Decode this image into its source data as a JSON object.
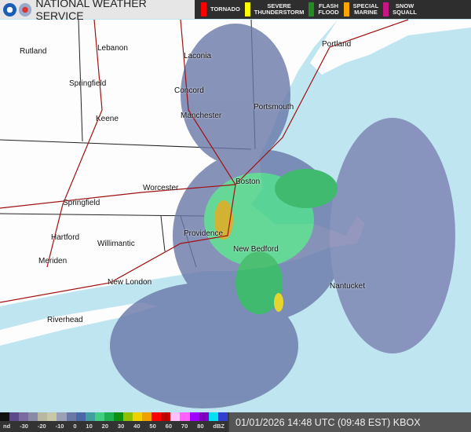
{
  "header": {
    "title": "NATIONAL WEATHER SERVICE",
    "logos": [
      "noaa-logo",
      "nws-logo"
    ]
  },
  "warnings": [
    {
      "label": "TORNADO",
      "color": "#ff0000"
    },
    {
      "label": "SEVERE\nTHUNDERSTORM",
      "color": "#ffff00"
    },
    {
      "label": "FLASH\nFLOOD",
      "color": "#228b22"
    },
    {
      "label": "SPECIAL\nMARINE",
      "color": "#ffa500"
    },
    {
      "label": "SNOW\nSQUALL",
      "color": "#c71585"
    }
  ],
  "cities": [
    "Rutland",
    "Lebanon",
    "Laconia",
    "Springfield",
    "Concord",
    "Portsmouth",
    "Keene",
    "Manchester",
    "Portland",
    "Worcester",
    "Boston",
    "Springfield",
    "Hartford",
    "Providence",
    "Willimantic",
    "New Bedford",
    "Meriden",
    "New London",
    "Nantucket",
    "Riverhead"
  ],
  "legend": {
    "ticks": [
      "nd",
      "-30",
      "-20",
      "-10",
      "0",
      "10",
      "20",
      "30",
      "40",
      "50",
      "60",
      "70",
      "80",
      "dBZ"
    ],
    "colors": [
      "#111111",
      "#5a4a8a",
      "#7a6aa0",
      "#8a8aa8",
      "#b8b8a0",
      "#c8c8a8",
      "#9aa0b8",
      "#6a78a8",
      "#4a68a8",
      "#40a0a0",
      "#40d080",
      "#20b050",
      "#109010",
      "#90c000",
      "#f0d000",
      "#f0a000",
      "#ff0000",
      "#c00000",
      "#ffc0ff",
      "#ff60ff",
      "#a000ff",
      "#8000c0",
      "#00e0f0",
      "#3040d0"
    ]
  },
  "timestamp": "01/01/2026 14:48 UTC (09:48 EST) KBOX"
}
